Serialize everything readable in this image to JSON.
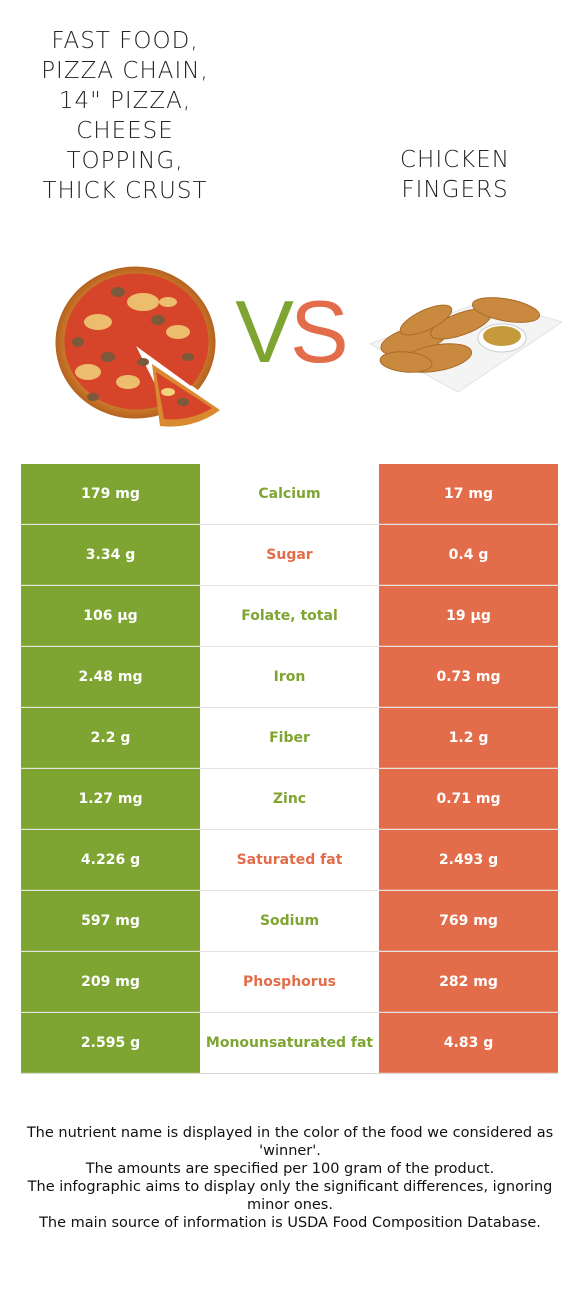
{
  "left_food": {
    "title_lines": [
      "FAST FOOD,",
      "PIZZA CHAIN,",
      "14\" PIZZA,",
      "CHEESE",
      "TOPPING,",
      "THICK CRUST"
    ],
    "image_icon": "pizza-image",
    "color": "#7ea531"
  },
  "right_food": {
    "title_lines": [
      "CHICKEN",
      "FINGERS"
    ],
    "image_icon": "chicken-fingers-image",
    "color": "#e36d4a"
  },
  "vs": {
    "v": "V",
    "s": "S"
  },
  "rows": [
    {
      "left": "179 mg",
      "nutrient": "Calcium",
      "right": "17 mg",
      "winner": "left"
    },
    {
      "left": "3.34 g",
      "nutrient": "Sugar",
      "right": "0.4 g",
      "winner": "right"
    },
    {
      "left": "106 µg",
      "nutrient": "Folate, total",
      "right": "19 µg",
      "winner": "left"
    },
    {
      "left": "2.48 mg",
      "nutrient": "Iron",
      "right": "0.73 mg",
      "winner": "left"
    },
    {
      "left": "2.2 g",
      "nutrient": "Fiber",
      "right": "1.2 g",
      "winner": "left"
    },
    {
      "left": "1.27 mg",
      "nutrient": "Zinc",
      "right": "0.71 mg",
      "winner": "left"
    },
    {
      "left": "4.226 g",
      "nutrient": "Saturated fat",
      "right": "2.493 g",
      "winner": "right"
    },
    {
      "left": "597 mg",
      "nutrient": "Sodium",
      "right": "769 mg",
      "winner": "left"
    },
    {
      "left": "209 mg",
      "nutrient": "Phosphorus",
      "right": "282 mg",
      "winner": "right"
    },
    {
      "left": "2.595 g",
      "nutrient": "Monounsaturated fat",
      "right": "4.83 g",
      "winner": "left"
    }
  ],
  "footnote": [
    "The nutrient name is displayed in the color of the food we considered as 'winner'.",
    "The amounts are specified per 100 gram of the product.",
    "The infographic aims to display only the significant differences, ignoring minor ones.",
    "The main source of information is USDA Food Composition Database."
  ]
}
